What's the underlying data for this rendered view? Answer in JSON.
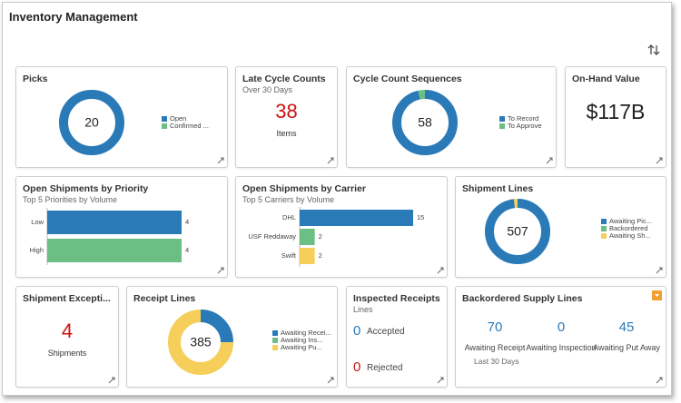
{
  "header": {
    "title": "Inventory Management"
  },
  "picks": {
    "title": "Picks",
    "total": 20,
    "series": [
      {
        "name": "Open",
        "color": "#2a7ab8",
        "value": 20
      },
      {
        "name": "Confirmed ...",
        "color": "#6cbf84",
        "value": 0
      }
    ]
  },
  "late_cycle_counts": {
    "title": "Late Cycle Counts",
    "subtitle": "Over 30 Days",
    "value": 38,
    "unit": "Items",
    "color": "#cc1111"
  },
  "cycle_count_sequences": {
    "title": "Cycle Count Sequences",
    "total": 58,
    "series": [
      {
        "name": "To Record",
        "color": "#2a7ab8",
        "value": 56
      },
      {
        "name": "To Approve",
        "color": "#6cbf84",
        "value": 2
      }
    ]
  },
  "on_hand_value": {
    "title": "On-Hand Value",
    "value": "$117B"
  },
  "shipments_by_priority": {
    "title": "Open Shipments by Priority",
    "subtitle": "Top 5 Priorities by Volume",
    "categories": [
      "Low",
      "High"
    ],
    "values": [
      4,
      4
    ],
    "colors": [
      "#2a7ab8",
      "#6cbf84"
    ]
  },
  "shipments_by_carrier": {
    "title": "Open Shipments by Carrier",
    "subtitle": "Top 5 Carriers by Volume",
    "categories": [
      "DHL",
      "USF Reddaway",
      "Swift"
    ],
    "values": [
      15,
      2,
      2
    ],
    "colors": [
      "#2a7ab8",
      "#6cbf84",
      "#f5cf5a"
    ]
  },
  "shipment_lines": {
    "title": "Shipment Lines",
    "total": 507,
    "series": [
      {
        "name": "Awaiting Pic...",
        "color": "#2a7ab8",
        "value": 497
      },
      {
        "name": "Backordered",
        "color": "#6cbf84",
        "value": 0
      },
      {
        "name": "Awaiting Sh...",
        "color": "#f5cf5a",
        "value": 10
      }
    ]
  },
  "shipment_exceptions": {
    "title": "Shipment Excepti...",
    "value": 4,
    "unit": "Shipments",
    "color": "#cc1111"
  },
  "receipt_lines": {
    "title": "Receipt Lines",
    "total": 385,
    "series": [
      {
        "name": "Awaiting Recei...",
        "color": "#2a7ab8",
        "value": 96
      },
      {
        "name": "Awaiting Ins...",
        "color": "#6cbf84",
        "value": 0
      },
      {
        "name": "Awaiting Pu...",
        "color": "#f5cf5a",
        "value": 289
      }
    ]
  },
  "inspected_receipts": {
    "title": "Inspected Receipts",
    "subtitle": "Lines",
    "items": [
      {
        "value": 0,
        "label": "Accepted",
        "color": "#2a7ab8"
      },
      {
        "value": 0,
        "label": "Rejected",
        "color": "#cc1111"
      }
    ]
  },
  "backordered_supply_lines": {
    "title": "Backordered Supply Lines",
    "note": "Last 30 Days",
    "items": [
      {
        "value": 70,
        "label": "Awaiting Receipt"
      },
      {
        "value": 0,
        "label": "Awaiting Inspection"
      },
      {
        "value": 45,
        "label": "Awaiting Put Away"
      }
    ],
    "color": "#2a7ab8"
  }
}
